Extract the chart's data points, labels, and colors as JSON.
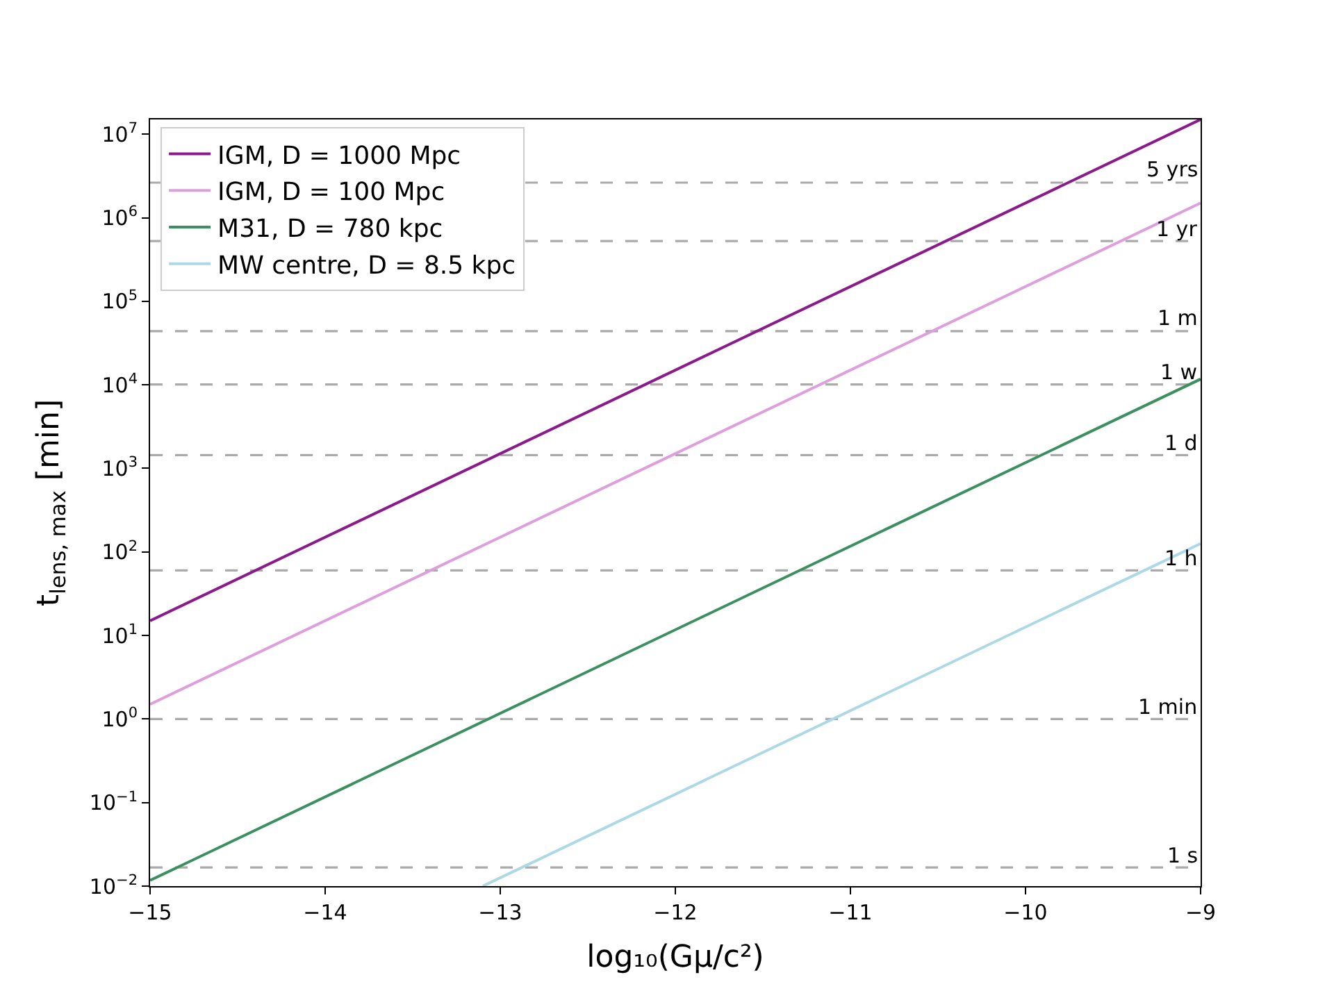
{
  "chart_data": {
    "type": "line",
    "xlabel": "log₁₀(Gμ/c²)",
    "ylabel": "t$_{lens, max}$ [min]",
    "log": "y",
    "grid": false,
    "legend": "top left",
    "line_style": "solid",
    "marker": "none",
    "xlim": [
      -15,
      -9
    ],
    "xticks": [
      {
        "value": -15,
        "label": "−15"
      },
      {
        "value": -14,
        "label": "−14"
      },
      {
        "value": -13,
        "label": "−13"
      },
      {
        "value": -12,
        "label": "−12"
      },
      {
        "value": -11,
        "label": "−11"
      },
      {
        "value": -10,
        "label": "−10"
      },
      {
        "value": -9,
        "label": "−9"
      }
    ],
    "ylim": [
      0.01,
      15000000
    ],
    "yticks": [
      {
        "value": 0.01,
        "label": "10$^{−2}$"
      },
      {
        "value": 0.1,
        "label": "10$^{−1}$"
      },
      {
        "value": 1,
        "label": "10$^{0}$"
      },
      {
        "value": 10,
        "label": "10$^{1}$"
      },
      {
        "value": 100,
        "label": "10$^{2}$"
      },
      {
        "value": 1000,
        "label": "10$^{3}$"
      },
      {
        "value": 10000,
        "label": "10$^{4}$"
      },
      {
        "value": 100000,
        "label": "10$^{5}$"
      },
      {
        "value": 1000000,
        "label": "10$^{6}$"
      },
      {
        "value": 10000000,
        "label": "10$^{7}$"
      }
    ],
    "series": [
      {
        "name": "IGM, D = 1000 Mpc",
        "color": "#8b1a8b",
        "x": [
          -15,
          -9
        ],
        "values": [
          15,
          15000000
        ]
      },
      {
        "name": "IGM, D = 100 Mpc",
        "color": "#dda0dd",
        "x": [
          -15,
          -9
        ],
        "values": [
          1.5,
          1500000
        ]
      },
      {
        "name": "M31, D = 780 kpc",
        "color": "#3c9060",
        "x": [
          -15,
          -9
        ],
        "values": [
          0.0117,
          11700
        ]
      },
      {
        "name": "MW centre, D = 8.5 kpc",
        "color": "#add8e6",
        "x": [
          -13.1,
          -9
        ],
        "values": [
          0.01,
          126
        ]
      }
    ],
    "ref_lines": [
      {
        "axis": "y",
        "value": 2630000,
        "label": "5 yrs",
        "color": "#aaaaaa",
        "line_style": "dashed"
      },
      {
        "axis": "y",
        "value": 526000,
        "label": "1 yr",
        "color": "#aaaaaa",
        "line_style": "dashed"
      },
      {
        "axis": "y",
        "value": 43800,
        "label": "1 m",
        "color": "#aaaaaa",
        "line_style": "dashed"
      },
      {
        "axis": "y",
        "value": 10080,
        "label": "1 w",
        "color": "#aaaaaa",
        "line_style": "dashed"
      },
      {
        "axis": "y",
        "value": 1440,
        "label": "1 d",
        "color": "#aaaaaa",
        "line_style": "dashed"
      },
      {
        "axis": "y",
        "value": 60,
        "label": "1 h",
        "color": "#aaaaaa",
        "line_style": "dashed"
      },
      {
        "axis": "y",
        "value": 1,
        "label": "1 min",
        "color": "#aaaaaa",
        "line_style": "dashed"
      },
      {
        "axis": "y",
        "value": 0.0167,
        "label": "1 s",
        "color": "#aaaaaa",
        "line_style": "dashed"
      }
    ]
  }
}
